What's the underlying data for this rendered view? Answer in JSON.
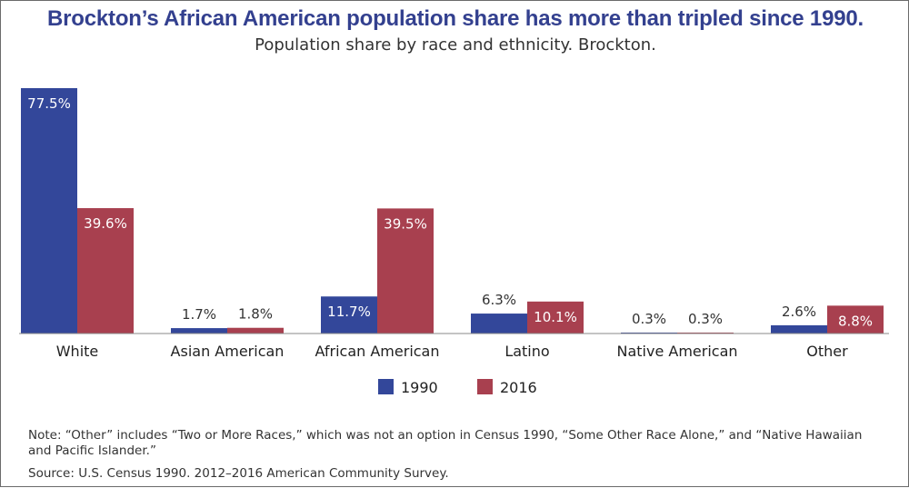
{
  "title": "Brockton’s African American population share has more than tripled since 1990.",
  "subtitle": "Population share by race and ethnicity. Brockton.",
  "note": "Note: “Other” includes “Two or More Races,” which was not an option in Census 1990, “Some Other Race Alone,” and “Native Hawaiian and Pacific Islander.”",
  "source": "Source: U.S. Census 1990. 2012–2016 American Community Survey.",
  "colors": {
    "1990": "#33479a",
    "2016": "#a8404f",
    "title": "#33408f"
  },
  "chart_data": {
    "type": "bar",
    "categories": [
      "White",
      "Asian American",
      "African American",
      "Latino",
      "Native American",
      "Other"
    ],
    "series": [
      {
        "name": "1990",
        "values": [
          77.5,
          1.7,
          11.7,
          6.3,
          0.3,
          2.6
        ],
        "labels": [
          "77.5%",
          "1.7%",
          "11.7%",
          "6.3%",
          "0.3%",
          "2.6%"
        ]
      },
      {
        "name": "2016",
        "values": [
          39.6,
          1.8,
          39.5,
          10.1,
          0.3,
          8.8
        ],
        "labels": [
          "39.6%",
          "1.8%",
          "39.5%",
          "10.1%",
          "0.3%",
          "8.8%"
        ]
      }
    ],
    "ylim": [
      0,
      77.5
    ],
    "grid": false,
    "legend": "bottom-center"
  }
}
